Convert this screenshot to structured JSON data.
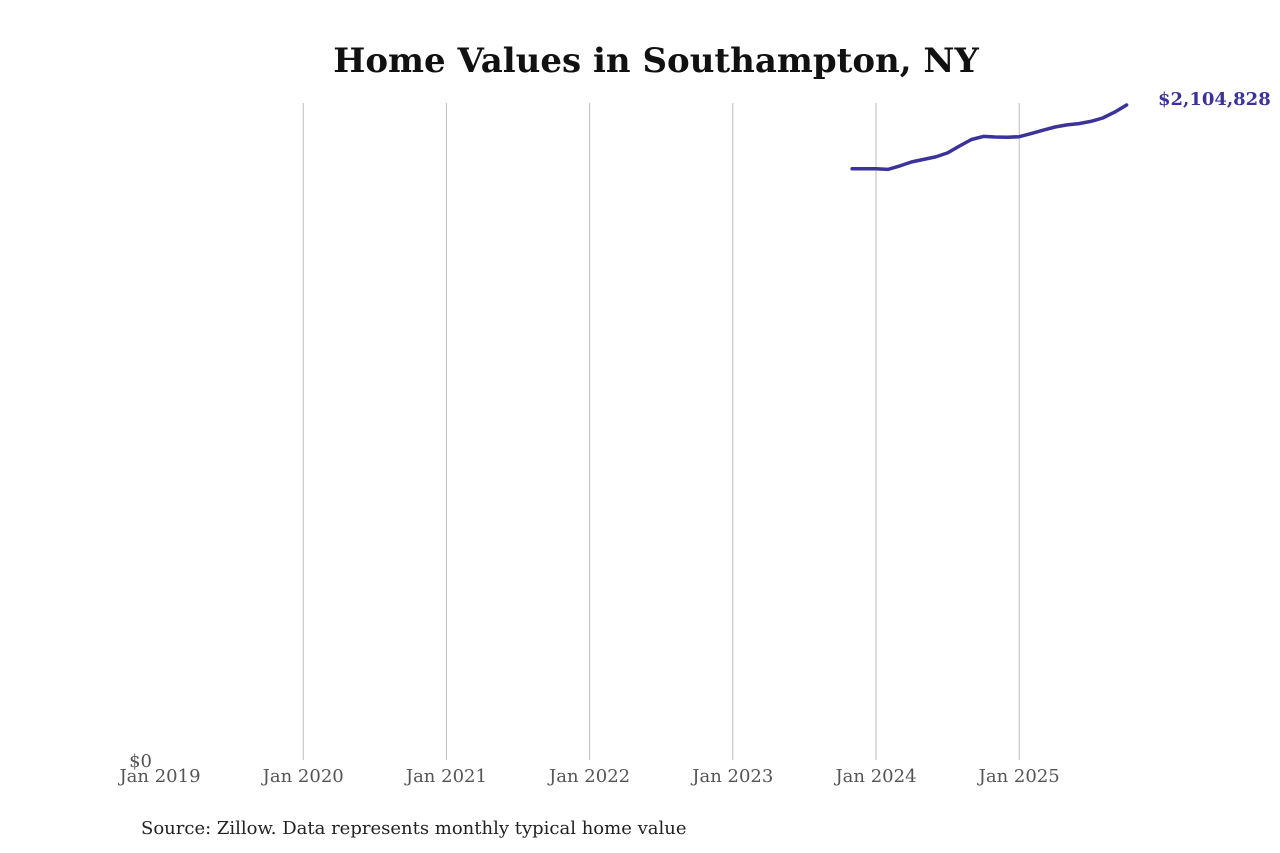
{
  "chart_data": {
    "type": "line",
    "title": "Home Values in Southampton, NY",
    "source": "Source: Zillow. Data represents monthly typical home value",
    "xlabel": "",
    "ylabel": "",
    "x_ticks": [
      "Jan 2019",
      "Jan 2020",
      "Jan 2021",
      "Jan 2022",
      "Jan 2023",
      "Jan 2024",
      "Jan 2025"
    ],
    "y_ticks": [
      "$0"
    ],
    "ylim": [
      0,
      2104828
    ],
    "xlim": [
      "2019-01",
      "2025-10"
    ],
    "grid": "vertical",
    "line_color": "#3b3399",
    "end_label": "$2,104,828",
    "x": [
      "2023-11",
      "2023-12",
      "2024-01",
      "2024-02",
      "2024-03",
      "2024-04",
      "2024-05",
      "2024-06",
      "2024-07",
      "2024-08",
      "2024-09",
      "2024-10",
      "2024-11",
      "2024-12",
      "2025-01",
      "2025-02",
      "2025-03",
      "2025-04",
      "2025-05",
      "2025-06",
      "2025-07",
      "2025-08",
      "2025-09",
      "2025-10"
    ],
    "values": [
      1900000,
      1900000,
      1900000,
      1898000,
      1909000,
      1922000,
      1930000,
      1938000,
      1951000,
      1973000,
      1994000,
      2004000,
      2002000,
      2001000,
      2003000,
      2013000,
      2024000,
      2034000,
      2041000,
      2045000,
      2052000,
      2063000,
      2082000,
      2104828
    ]
  }
}
